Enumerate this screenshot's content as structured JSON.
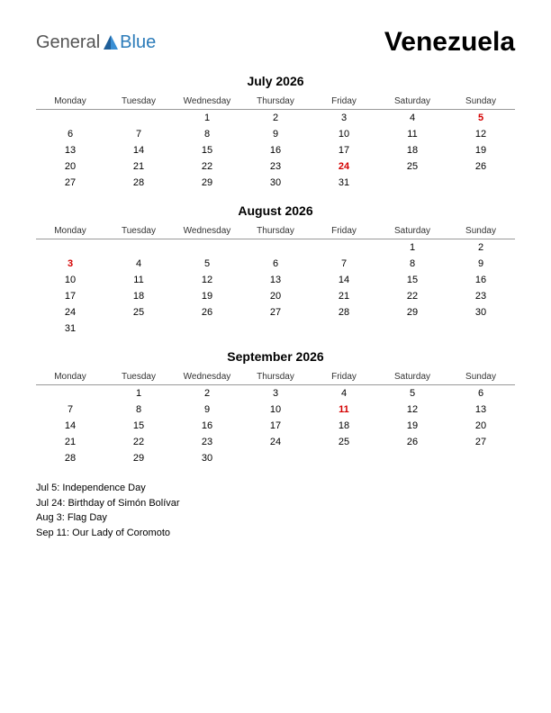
{
  "logo": {
    "text1": "General",
    "text2": "Blue",
    "icon_color": "#1f5f99"
  },
  "country": "Venezuela",
  "day_headers": [
    "Monday",
    "Tuesday",
    "Wednesday",
    "Thursday",
    "Friday",
    "Saturday",
    "Sunday"
  ],
  "months": [
    {
      "title": "July 2026",
      "weeks": [
        [
          {
            "d": ""
          },
          {
            "d": ""
          },
          {
            "d": "1"
          },
          {
            "d": "2"
          },
          {
            "d": "3"
          },
          {
            "d": "4"
          },
          {
            "d": "5",
            "h": true
          }
        ],
        [
          {
            "d": "6"
          },
          {
            "d": "7"
          },
          {
            "d": "8"
          },
          {
            "d": "9"
          },
          {
            "d": "10"
          },
          {
            "d": "11"
          },
          {
            "d": "12"
          }
        ],
        [
          {
            "d": "13"
          },
          {
            "d": "14"
          },
          {
            "d": "15"
          },
          {
            "d": "16"
          },
          {
            "d": "17"
          },
          {
            "d": "18"
          },
          {
            "d": "19"
          }
        ],
        [
          {
            "d": "20"
          },
          {
            "d": "21"
          },
          {
            "d": "22"
          },
          {
            "d": "23"
          },
          {
            "d": "24",
            "h": true
          },
          {
            "d": "25"
          },
          {
            "d": "26"
          }
        ],
        [
          {
            "d": "27"
          },
          {
            "d": "28"
          },
          {
            "d": "29"
          },
          {
            "d": "30"
          },
          {
            "d": "31"
          },
          {
            "d": ""
          },
          {
            "d": ""
          }
        ]
      ]
    },
    {
      "title": "August 2026",
      "weeks": [
        [
          {
            "d": ""
          },
          {
            "d": ""
          },
          {
            "d": ""
          },
          {
            "d": ""
          },
          {
            "d": ""
          },
          {
            "d": "1"
          },
          {
            "d": "2"
          }
        ],
        [
          {
            "d": "3",
            "h": true
          },
          {
            "d": "4"
          },
          {
            "d": "5"
          },
          {
            "d": "6"
          },
          {
            "d": "7"
          },
          {
            "d": "8"
          },
          {
            "d": "9"
          }
        ],
        [
          {
            "d": "10"
          },
          {
            "d": "11"
          },
          {
            "d": "12"
          },
          {
            "d": "13"
          },
          {
            "d": "14"
          },
          {
            "d": "15"
          },
          {
            "d": "16"
          }
        ],
        [
          {
            "d": "17"
          },
          {
            "d": "18"
          },
          {
            "d": "19"
          },
          {
            "d": "20"
          },
          {
            "d": "21"
          },
          {
            "d": "22"
          },
          {
            "d": "23"
          }
        ],
        [
          {
            "d": "24"
          },
          {
            "d": "25"
          },
          {
            "d": "26"
          },
          {
            "d": "27"
          },
          {
            "d": "28"
          },
          {
            "d": "29"
          },
          {
            "d": "30"
          }
        ],
        [
          {
            "d": "31"
          },
          {
            "d": ""
          },
          {
            "d": ""
          },
          {
            "d": ""
          },
          {
            "d": ""
          },
          {
            "d": ""
          },
          {
            "d": ""
          }
        ]
      ]
    },
    {
      "title": "September 2026",
      "weeks": [
        [
          {
            "d": ""
          },
          {
            "d": "1"
          },
          {
            "d": "2"
          },
          {
            "d": "3"
          },
          {
            "d": "4"
          },
          {
            "d": "5"
          },
          {
            "d": "6"
          }
        ],
        [
          {
            "d": "7"
          },
          {
            "d": "8"
          },
          {
            "d": "9"
          },
          {
            "d": "10"
          },
          {
            "d": "11",
            "h": true
          },
          {
            "d": "12"
          },
          {
            "d": "13"
          }
        ],
        [
          {
            "d": "14"
          },
          {
            "d": "15"
          },
          {
            "d": "16"
          },
          {
            "d": "17"
          },
          {
            "d": "18"
          },
          {
            "d": "19"
          },
          {
            "d": "20"
          }
        ],
        [
          {
            "d": "21"
          },
          {
            "d": "22"
          },
          {
            "d": "23"
          },
          {
            "d": "24"
          },
          {
            "d": "25"
          },
          {
            "d": "26"
          },
          {
            "d": "27"
          }
        ],
        [
          {
            "d": "28"
          },
          {
            "d": "29"
          },
          {
            "d": "30"
          },
          {
            "d": ""
          },
          {
            "d": ""
          },
          {
            "d": ""
          },
          {
            "d": ""
          }
        ]
      ]
    }
  ],
  "holidays_list": [
    "Jul 5: Independence Day",
    "Jul 24: Birthday of Simón Bolívar",
    "Aug 3: Flag Day",
    "Sep 11: Our Lady of Coromoto"
  ],
  "styling": {
    "background_color": "#ffffff",
    "text_color": "#000000",
    "holiday_color": "#d40000",
    "header_border_color": "#999999",
    "country_fontsize": 30,
    "month_title_fontsize": 14,
    "day_header_fontsize": 10,
    "cell_fontsize": 11,
    "holiday_list_fontsize": 11
  }
}
